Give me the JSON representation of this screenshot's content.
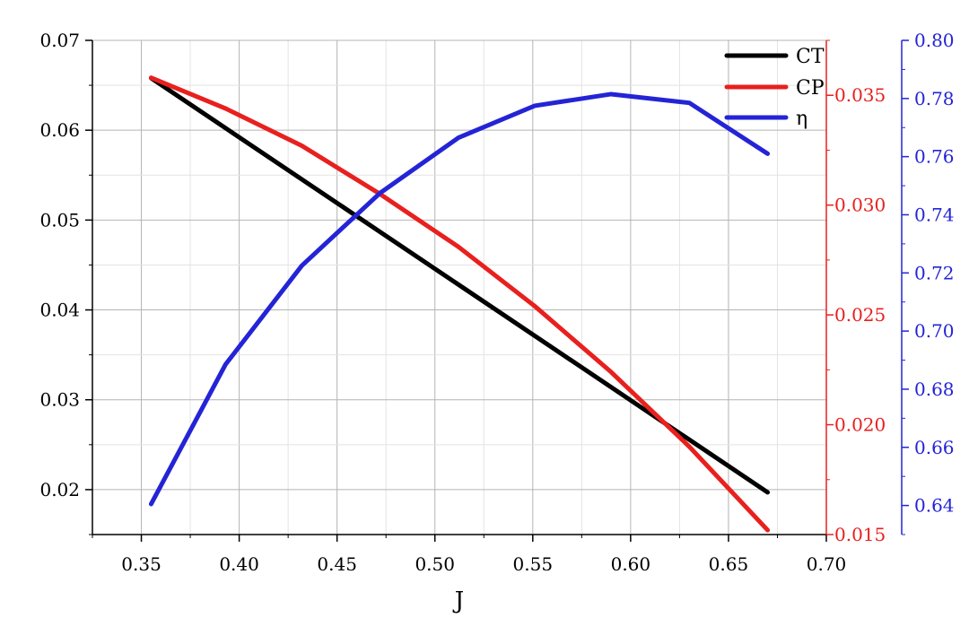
{
  "chart_data": {
    "type": "line",
    "title": "",
    "xlabel": "J",
    "x_ticks": [
      "0.35",
      "0.40",
      "0.45",
      "0.50",
      "0.55",
      "0.60",
      "0.65",
      "0.70"
    ],
    "xlim": [
      0.325,
      0.7
    ],
    "grid": true,
    "legend_position": "top-right",
    "axes": {
      "left": {
        "ylim": [
          0.015,
          0.07
        ],
        "ticks": [
          "0.02",
          "0.03",
          "0.04",
          "0.05",
          "0.06",
          "0.07"
        ],
        "color": "#000000"
      },
      "right1": {
        "ylim": [
          0.015,
          0.0375
        ],
        "ticks": [
          "0.015",
          "0.020",
          "0.025",
          "0.030",
          "0.035"
        ],
        "color": "#e8201e"
      },
      "right2": {
        "ylim": [
          0.63,
          0.8
        ],
        "ticks": [
          "0.64",
          "0.66",
          "0.68",
          "0.70",
          "0.72",
          "0.74",
          "0.76",
          "0.78",
          "0.80"
        ],
        "color": "#2424d6"
      }
    },
    "series": [
      {
        "name": "CT",
        "color": "#000000",
        "axis": "left",
        "x": [
          0.355,
          0.67
        ],
        "y": [
          0.0658,
          0.0197
        ]
      },
      {
        "name": "CP",
        "color": "#e8201e",
        "axis": "right1",
        "x": [
          0.355,
          0.393,
          0.432,
          0.472,
          0.512,
          0.551,
          0.59,
          0.63,
          0.67
        ],
        "y": [
          0.0358,
          0.0344,
          0.0327,
          0.0305,
          0.0281,
          0.0254,
          0.0224,
          0.019,
          0.0152
        ]
      },
      {
        "name": "η",
        "color": "#2424d6",
        "axis": "right2",
        "x": [
          0.355,
          0.393,
          0.432,
          0.472,
          0.512,
          0.551,
          0.59,
          0.63,
          0.67
        ],
        "y": [
          0.6405,
          0.6885,
          0.7225,
          0.7475,
          0.7665,
          0.7775,
          0.7815,
          0.7785,
          0.761
        ]
      }
    ]
  }
}
